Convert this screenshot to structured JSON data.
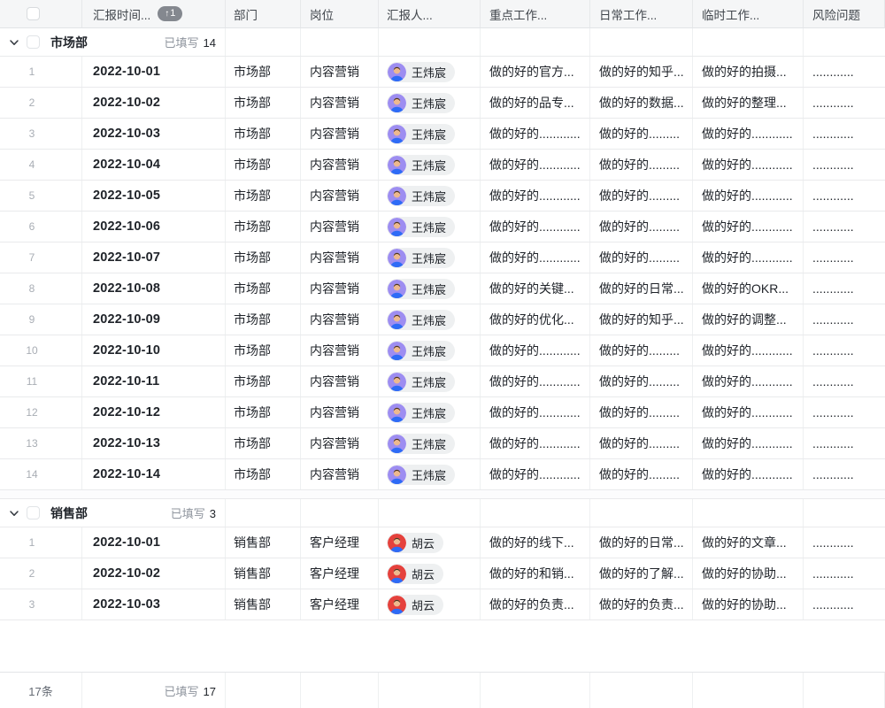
{
  "theme": {
    "header_bg": "#f5f6f7",
    "badge_bg": "#84888f",
    "chip_bg": "#eef0f1",
    "avatar_purple": "#9d8df1",
    "avatar_red": "#e5413c",
    "shirt_blue": "#2e6bf6"
  },
  "header": {
    "columns": [
      {
        "key": "date",
        "label": "汇报时间...",
        "sort_arrow": "↑",
        "sort_count": "1"
      },
      {
        "key": "dept",
        "label": "部门"
      },
      {
        "key": "post",
        "label": "岗位"
      },
      {
        "key": "reporter",
        "label": "汇报人..."
      },
      {
        "key": "key_work",
        "label": "重点工作..."
      },
      {
        "key": "daily_work",
        "label": "日常工作..."
      },
      {
        "key": "temp_work",
        "label": "临时工作..."
      },
      {
        "key": "risk",
        "label": "风险问题"
      }
    ]
  },
  "groups": [
    {
      "name": "市场部",
      "filled_label": "已填写",
      "filled_count": "14",
      "rows": [
        {
          "num": "1",
          "date": "2022-10-01",
          "dept": "市场部",
          "post": "内容营销",
          "person": {
            "name": "王炜宸",
            "avatar_color": "#9d8df1"
          },
          "key_work": "做的好的官方...",
          "daily_work": "做的好的知乎...",
          "temp_work": "做的好的拍摄...",
          "risk": "............"
        },
        {
          "num": "2",
          "date": "2022-10-02",
          "dept": "市场部",
          "post": "内容营销",
          "person": {
            "name": "王炜宸",
            "avatar_color": "#9d8df1"
          },
          "key_work": "做的好的品专...",
          "daily_work": "做的好的数据...",
          "temp_work": "做的好的整理...",
          "risk": "............"
        },
        {
          "num": "3",
          "date": "2022-10-03",
          "dept": "市场部",
          "post": "内容营销",
          "person": {
            "name": "王炜宸",
            "avatar_color": "#9d8df1"
          },
          "key_work": "做的好的............",
          "daily_work": "做的好的.........",
          "temp_work": "做的好的............",
          "risk": "............"
        },
        {
          "num": "4",
          "date": "2022-10-04",
          "dept": "市场部",
          "post": "内容营销",
          "person": {
            "name": "王炜宸",
            "avatar_color": "#9d8df1"
          },
          "key_work": "做的好的............",
          "daily_work": "做的好的.........",
          "temp_work": "做的好的............",
          "risk": "............"
        },
        {
          "num": "5",
          "date": "2022-10-05",
          "dept": "市场部",
          "post": "内容营销",
          "person": {
            "name": "王炜宸",
            "avatar_color": "#9d8df1"
          },
          "key_work": "做的好的............",
          "daily_work": "做的好的.........",
          "temp_work": "做的好的............",
          "risk": "............"
        },
        {
          "num": "6",
          "date": "2022-10-06",
          "dept": "市场部",
          "post": "内容营销",
          "person": {
            "name": "王炜宸",
            "avatar_color": "#9d8df1"
          },
          "key_work": "做的好的............",
          "daily_work": "做的好的.........",
          "temp_work": "做的好的............",
          "risk": "............"
        },
        {
          "num": "7",
          "date": "2022-10-07",
          "dept": "市场部",
          "post": "内容营销",
          "person": {
            "name": "王炜宸",
            "avatar_color": "#9d8df1"
          },
          "key_work": "做的好的............",
          "daily_work": "做的好的.........",
          "temp_work": "做的好的............",
          "risk": "............"
        },
        {
          "num": "8",
          "date": "2022-10-08",
          "dept": "市场部",
          "post": "内容营销",
          "person": {
            "name": "王炜宸",
            "avatar_color": "#9d8df1"
          },
          "key_work": "做的好的关键...",
          "daily_work": "做的好的日常...",
          "temp_work": "做的好的OKR...",
          "risk": "............"
        },
        {
          "num": "9",
          "date": "2022-10-09",
          "dept": "市场部",
          "post": "内容营销",
          "person": {
            "name": "王炜宸",
            "avatar_color": "#9d8df1"
          },
          "key_work": "做的好的优化...",
          "daily_work": "做的好的知乎...",
          "temp_work": "做的好的调整...",
          "risk": "............"
        },
        {
          "num": "10",
          "date": "2022-10-10",
          "dept": "市场部",
          "post": "内容营销",
          "person": {
            "name": "王炜宸",
            "avatar_color": "#9d8df1"
          },
          "key_work": "做的好的............",
          "daily_work": "做的好的.........",
          "temp_work": "做的好的............",
          "risk": "............"
        },
        {
          "num": "11",
          "date": "2022-10-11",
          "dept": "市场部",
          "post": "内容营销",
          "person": {
            "name": "王炜宸",
            "avatar_color": "#9d8df1"
          },
          "key_work": "做的好的............",
          "daily_work": "做的好的.........",
          "temp_work": "做的好的............",
          "risk": "............"
        },
        {
          "num": "12",
          "date": "2022-10-12",
          "dept": "市场部",
          "post": "内容营销",
          "person": {
            "name": "王炜宸",
            "avatar_color": "#9d8df1"
          },
          "key_work": "做的好的............",
          "daily_work": "做的好的.........",
          "temp_work": "做的好的............",
          "risk": "............"
        },
        {
          "num": "13",
          "date": "2022-10-13",
          "dept": "市场部",
          "post": "内容营销",
          "person": {
            "name": "王炜宸",
            "avatar_color": "#9d8df1"
          },
          "key_work": "做的好的............",
          "daily_work": "做的好的.........",
          "temp_work": "做的好的............",
          "risk": "............"
        },
        {
          "num": "14",
          "date": "2022-10-14",
          "dept": "市场部",
          "post": "内容营销",
          "person": {
            "name": "王炜宸",
            "avatar_color": "#9d8df1"
          },
          "key_work": "做的好的............",
          "daily_work": "做的好的.........",
          "temp_work": "做的好的............",
          "risk": "............"
        }
      ]
    },
    {
      "name": "销售部",
      "filled_label": "已填写",
      "filled_count": "3",
      "rows": [
        {
          "num": "1",
          "date": "2022-10-01",
          "dept": "销售部",
          "post": "客户经理",
          "person": {
            "name": "胡云",
            "avatar_color": "#e5413c"
          },
          "key_work": "做的好的线下...",
          "daily_work": "做的好的日常...",
          "temp_work": "做的好的文章...",
          "risk": "............"
        },
        {
          "num": "2",
          "date": "2022-10-02",
          "dept": "销售部",
          "post": "客户经理",
          "person": {
            "name": "胡云",
            "avatar_color": "#e5413c"
          },
          "key_work": "做的好的和销...",
          "daily_work": "做的好的了解...",
          "temp_work": "做的好的协助...",
          "risk": "............"
        },
        {
          "num": "3",
          "date": "2022-10-03",
          "dept": "销售部",
          "post": "客户经理",
          "person": {
            "name": "胡云",
            "avatar_color": "#e5413c"
          },
          "key_work": "做的好的负责...",
          "daily_work": "做的好的负责...",
          "temp_work": "做的好的协助...",
          "risk": "............"
        }
      ]
    }
  ],
  "footer": {
    "count_label": "17条",
    "filled_label": "已填写",
    "filled_count": "17"
  }
}
